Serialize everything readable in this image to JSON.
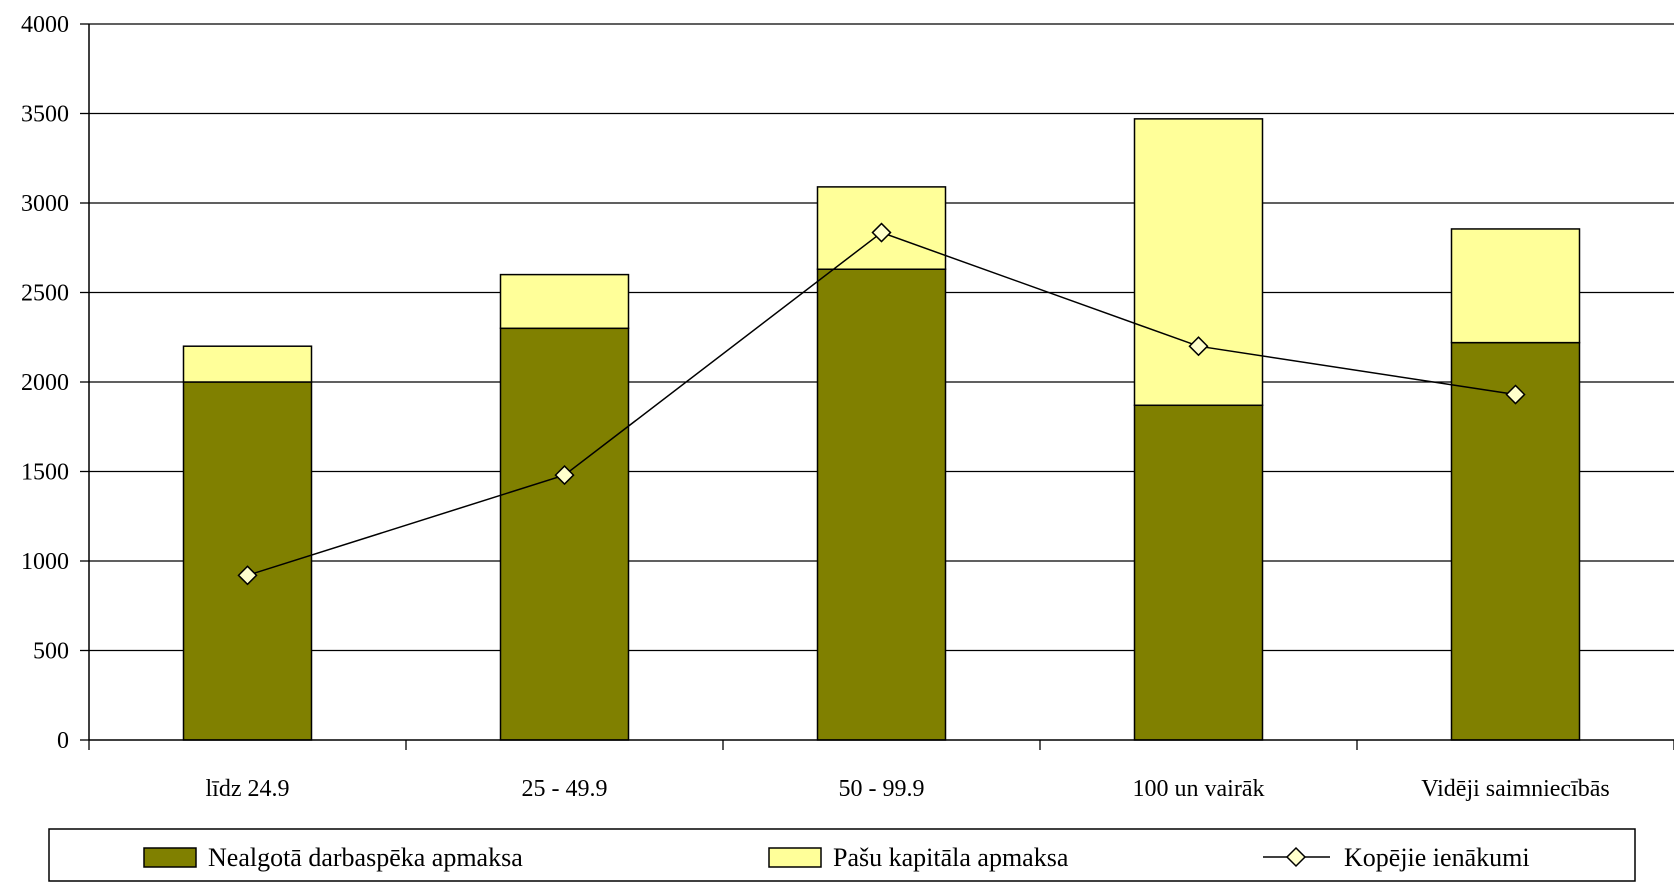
{
  "chart_data": {
    "type": "bar",
    "stacked": true,
    "categories": [
      "līdz 24.9",
      "25 - 49.9",
      "50 - 99.9",
      "100 un vairāk",
      "Vidēji saimniecībās"
    ],
    "series": [
      {
        "name": "Nealgotā darbaspēka apmaksa",
        "type": "bar",
        "color": "#808000",
        "values": [
          2000,
          2300,
          2630,
          1870,
          2220
        ]
      },
      {
        "name": "Pašu kapitāla apmaksa",
        "type": "bar",
        "color": "#FFFF99",
        "values": [
          200,
          300,
          460,
          1600,
          635
        ]
      },
      {
        "name": "Kopējie ienākumi",
        "type": "line",
        "color": "#000000",
        "marker": "diamond",
        "marker_fill": "#FFFFCC",
        "values": [
          920,
          1480,
          2835,
          2200,
          1930
        ]
      }
    ],
    "ylim": [
      0,
      4000
    ],
    "yticks": [
      0,
      500,
      1000,
      1500,
      2000,
      2500,
      3000,
      3500,
      4000
    ],
    "grid": true,
    "legend": "bottom"
  }
}
